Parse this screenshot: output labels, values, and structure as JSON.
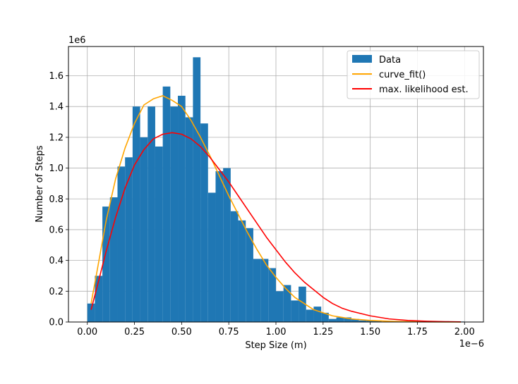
{
  "chart_data": {
    "type": "bar",
    "xlabel": "Step Size (m)",
    "ylabel": "Number of Steps",
    "x_scale_label": "1e−6",
    "y_scale_label": "1e6",
    "xlim": [
      -0.1,
      2.1
    ],
    "ylim": [
      0.0,
      1.79
    ],
    "x_ticks": [
      0.0,
      0.25,
      0.5,
      0.75,
      1.0,
      1.25,
      1.5,
      1.75,
      2.0
    ],
    "x_tick_labels": [
      "0.00",
      "0.25",
      "0.50",
      "0.75",
      "1.00",
      "1.25",
      "1.50",
      "1.75",
      "2.00"
    ],
    "y_ticks": [
      0.0,
      0.2,
      0.4,
      0.6,
      0.8,
      1.0,
      1.2,
      1.4,
      1.6
    ],
    "y_tick_labels": [
      "0.0",
      "0.2",
      "0.4",
      "0.6",
      "0.8",
      "1.0",
      "1.2",
      "1.4",
      "1.6"
    ],
    "grid": true,
    "legend_position": "top-right",
    "legend": [
      "Data",
      "curve_fit()",
      "max. likelihood est."
    ],
    "colors": {
      "bars": "#1f77b4",
      "curve_fit": "#ffa500",
      "mle": "#ff0000",
      "grid": "#b0b0b0"
    },
    "histogram": {
      "name": "Data",
      "bin_start": 0.0,
      "bin_width": 0.04,
      "values": [
        0.12,
        0.3,
        0.75,
        0.81,
        1.01,
        1.07,
        1.4,
        1.2,
        1.4,
        1.14,
        1.53,
        1.4,
        1.47,
        1.33,
        1.72,
        1.29,
        0.84,
        0.98,
        1.0,
        0.72,
        0.66,
        0.61,
        0.41,
        0.41,
        0.35,
        0.2,
        0.24,
        0.14,
        0.23,
        0.08,
        0.1,
        0.06,
        0.02,
        0.03,
        0.03,
        0.02,
        0.01,
        0.01,
        0.01,
        0.0,
        0.005,
        0.005,
        0.005,
        0.01,
        0.005,
        0.005,
        0.005,
        0.005,
        0.003,
        0.003
      ]
    },
    "series": [
      {
        "name": "curve_fit()",
        "x": [
          0.02,
          0.05,
          0.1,
          0.15,
          0.2,
          0.25,
          0.3,
          0.35,
          0.4,
          0.45,
          0.5,
          0.55,
          0.6,
          0.65,
          0.7,
          0.75,
          0.8,
          0.85,
          0.9,
          0.95,
          1.0,
          1.05,
          1.1,
          1.15,
          1.2,
          1.25,
          1.3,
          1.35,
          1.4,
          1.5,
          1.6,
          1.7,
          1.8,
          1.9,
          1.98
        ],
        "y": [
          0.12,
          0.32,
          0.66,
          0.93,
          1.13,
          1.29,
          1.41,
          1.45,
          1.47,
          1.44,
          1.4,
          1.31,
          1.2,
          1.08,
          0.95,
          0.82,
          0.7,
          0.58,
          0.47,
          0.37,
          0.29,
          0.22,
          0.16,
          0.12,
          0.08,
          0.06,
          0.04,
          0.03,
          0.02,
          0.01,
          0.005,
          0.002,
          0.001,
          0.0005,
          0.0
        ]
      },
      {
        "name": "max. likelihood est.",
        "x": [
          0.02,
          0.05,
          0.1,
          0.15,
          0.2,
          0.25,
          0.3,
          0.35,
          0.4,
          0.45,
          0.5,
          0.55,
          0.6,
          0.65,
          0.7,
          0.75,
          0.8,
          0.85,
          0.9,
          0.95,
          1.0,
          1.05,
          1.1,
          1.15,
          1.2,
          1.25,
          1.3,
          1.35,
          1.4,
          1.5,
          1.6,
          1.7,
          1.8,
          1.9,
          1.98
        ],
        "y": [
          0.08,
          0.22,
          0.46,
          0.68,
          0.87,
          1.02,
          1.12,
          1.19,
          1.22,
          1.23,
          1.22,
          1.19,
          1.14,
          1.07,
          0.99,
          0.91,
          0.82,
          0.73,
          0.64,
          0.55,
          0.47,
          0.39,
          0.32,
          0.26,
          0.21,
          0.16,
          0.12,
          0.09,
          0.07,
          0.04,
          0.02,
          0.01,
          0.005,
          0.002,
          0.001
        ]
      }
    ]
  }
}
